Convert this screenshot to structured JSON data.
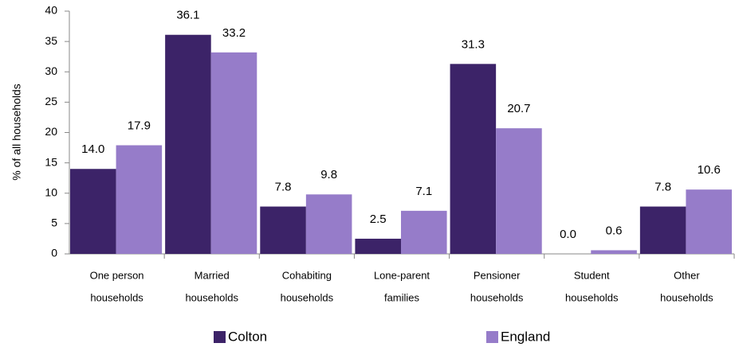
{
  "chart_data": {
    "type": "bar",
    "y_label": "% of all households",
    "categories": [
      [
        "One person",
        "households"
      ],
      [
        "Married",
        "households"
      ],
      [
        "Cohabiting",
        "households"
      ],
      [
        "Lone-parent",
        "families"
      ],
      [
        "Pensioner",
        "households"
      ],
      [
        "Student",
        "households"
      ],
      [
        "Other",
        "households"
      ]
    ],
    "series": [
      {
        "name": "Colton",
        "color": "#3c2368",
        "values": [
          14.0,
          36.1,
          7.8,
          2.5,
          31.3,
          0.0,
          7.8
        ],
        "value_labels": [
          "14.0",
          "36.1",
          "7.8",
          "2.5",
          "31.3",
          "0.0",
          "7.8"
        ]
      },
      {
        "name": "England",
        "color": "#967cc9",
        "values": [
          17.9,
          33.2,
          9.8,
          7.1,
          20.7,
          0.6,
          10.6
        ],
        "value_labels": [
          "17.9",
          "33.2",
          "9.8",
          "7.1",
          "20.7",
          "0.6",
          "10.6"
        ]
      }
    ],
    "ylim": [
      0,
      40
    ],
    "yticks": [
      0,
      5,
      10,
      15,
      20,
      25,
      30,
      35,
      40
    ],
    "grid": false
  }
}
